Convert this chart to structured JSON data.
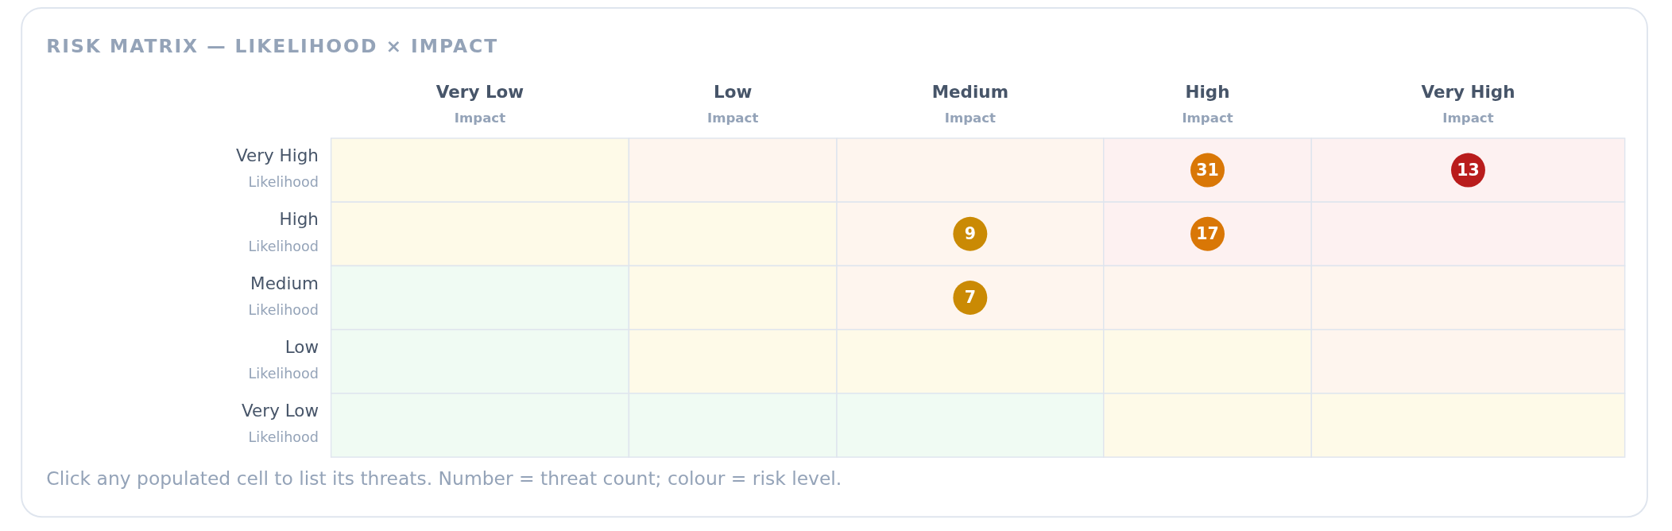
{
  "chart_data": {
    "type": "heatmap",
    "title": "RISK MATRIX — LIKELIHOOD × IMPACT",
    "categories": [
      "Very Low\nImpact",
      "Low\nImpact",
      "Medium\nImpact",
      "High\nImpact",
      "Very High\nImpact"
    ],
    "y_categories": [
      "Very High\nLikelihood",
      "High\nLikelihood",
      "Medium\nLikelihood",
      "Low\nLikelihood",
      "Very Low\nLikelihood"
    ],
    "cells": [
      [
        null,
        null,
        null,
        31,
        13
      ],
      [
        null,
        null,
        9,
        17,
        null
      ],
      [
        null,
        null,
        7,
        null,
        null
      ],
      [
        null,
        null,
        null,
        null,
        null
      ],
      [
        null,
        null,
        null,
        null,
        null
      ]
    ],
    "data_labels": true,
    "colors": [
      [
        null,
        null,
        null,
        "#d97706",
        "#b91c1c"
      ],
      [
        null,
        null,
        "#ca8a04",
        "#d97706",
        null
      ],
      [
        null,
        null,
        "#ca8a04",
        null,
        null
      ],
      [
        null,
        null,
        null,
        null,
        null
      ],
      [
        null,
        null,
        null,
        null,
        null
      ]
    ],
    "annotations": [
      "Click any populated cell to list its threats. Number = threat count; colour = risk level."
    ]
  }
}
